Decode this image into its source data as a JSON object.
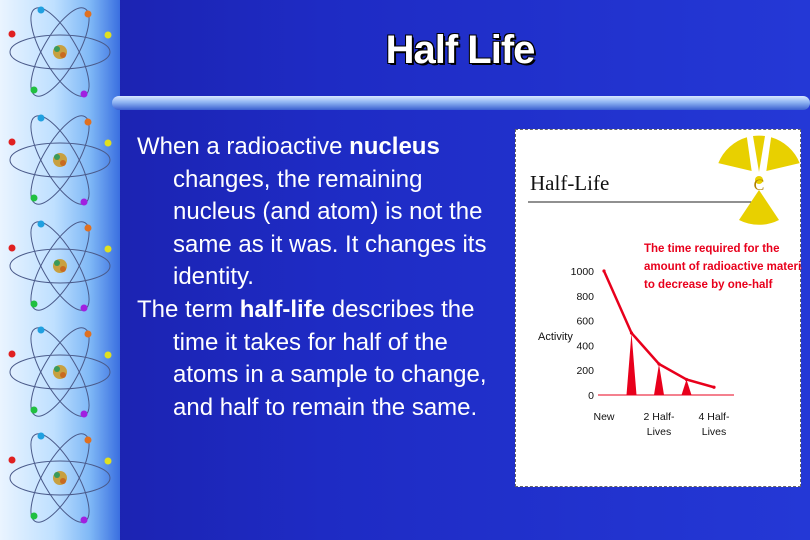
{
  "slide": {
    "title": "Half Life",
    "paragraphs": [
      [
        {
          "text": "When a radioactive ",
          "bold": false
        },
        {
          "text": "nucleus",
          "bold": true
        },
        {
          "text": " changes, the remaining nucleus (and atom) is not the same as it was. It changes its identity.",
          "bold": false
        }
      ],
      [
        {
          "text": "The term ",
          "bold": false
        },
        {
          "text": "half-life",
          "bold": true
        },
        {
          "text": " describes the time it takes for half of the atoms in a sample to change, and half to remain the same.",
          "bold": false
        }
      ]
    ],
    "colors": {
      "background": "#1e2bc4",
      "text": "#ffffff",
      "accent_red": "#e8001c"
    }
  },
  "chart_data": {
    "type": "line",
    "title": "Half-Life",
    "annotation": [
      "The time required for the",
      "amount of radioactive material",
      "to decrease by one-half"
    ],
    "ylabel": "Activity",
    "yticks": [
      "1000",
      "800",
      "600",
      "400",
      "200",
      "0"
    ],
    "ylim": [
      0,
      1000
    ],
    "xticks": [
      [
        "New"
      ],
      [
        "2 Half-",
        "Lives"
      ],
      [
        "4 Half-",
        "Lives"
      ]
    ],
    "series": [
      {
        "values": [
          1000,
          500,
          250,
          125,
          62.5
        ]
      }
    ],
    "spikes": [
      500,
      250,
      125
    ],
    "line_color": "#e8001c",
    "icon": "radiation-hazard-icon"
  }
}
